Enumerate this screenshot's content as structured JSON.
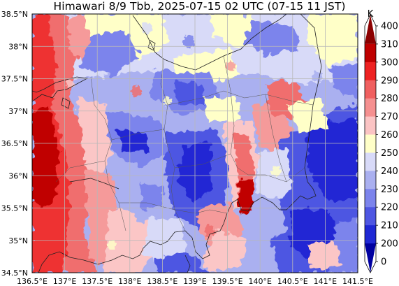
{
  "title": "Himawari 8/9 Tbb, 2025-07-15 02 UTC (07-15 11 JST)",
  "map": {
    "lon_ticks": [
      "136.5°E",
      "137°E",
      "137.5°E",
      "138°E",
      "138.5°E",
      "139°E",
      "139.5°E",
      "140°E",
      "140.5°E",
      "141°E",
      "141.5°E"
    ],
    "lat_ticks": [
      "38.5°N",
      "38°N",
      "37.5°N",
      "37°N",
      "36.5°N",
      "36°N",
      "35.5°N",
      "35°N",
      "34.5°N"
    ],
    "extent": {
      "lon": [
        136.5,
        141.5
      ],
      "lat": [
        34.5,
        38.5
      ]
    }
  },
  "colorbar": {
    "unit": "K",
    "levels": [
      "400",
      "310",
      "300",
      "290",
      "280",
      "270",
      "260",
      "250",
      "240",
      "230",
      "220",
      "210",
      "200",
      "0"
    ],
    "colors": [
      "#8b0000",
      "#bf0000",
      "#ee2222",
      "#f06060",
      "#f59090",
      "#fbc4c4",
      "#ffffc8",
      "#d8daf8",
      "#aab0f0",
      "#7c84ec",
      "#4e56e2",
      "#1f28d4",
      "#0000a0"
    ]
  },
  "field_colors": {
    "dark_red": "#c00000",
    "red": "#ee3030",
    "salmon": "#f06e6e",
    "pink": "#f59a9a",
    "light_pink": "#fbc6c6",
    "cream": "#ffffc8",
    "pale_blue": "#d8daf8",
    "light_blue": "#aab0f0",
    "blue": "#7c84ec",
    "mid_blue": "#4e56e2",
    "deep_blue": "#2028d4"
  }
}
